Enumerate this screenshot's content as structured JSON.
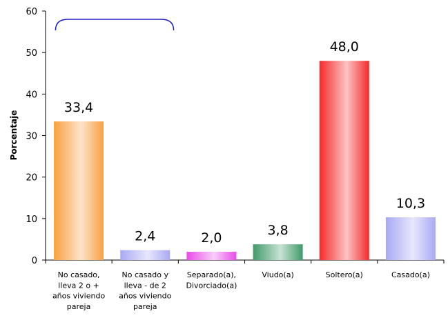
{
  "chart_data": {
    "type": "bar",
    "ylabel": "Porcentaje",
    "xlabel": "",
    "ylim": [
      0,
      60
    ],
    "yticks": [
      0,
      10,
      20,
      30,
      40,
      50,
      60
    ],
    "grid": false,
    "categories": [
      [
        "No casado,",
        "lleva 2 o +",
        "años viviendo",
        "pareja"
      ],
      [
        "No casado y",
        "lleva - de 2",
        "años viviendo",
        "pareja"
      ],
      [
        "Separado(a),",
        "Divorciado(a)"
      ],
      [
        "Viudo(a)"
      ],
      [
        "Soltero(a)"
      ],
      [
        "Casado(a)"
      ]
    ],
    "values": [
      33.4,
      2.4,
      2.0,
      3.8,
      48.0,
      10.3
    ],
    "value_labels": [
      "33,4",
      "2,4",
      "2,0",
      "3,8",
      "48,0",
      "10,3"
    ],
    "colors": [
      "#f7a040",
      "#a9a9f4",
      "#e84ce8",
      "#3f9a68",
      "#f52a2a",
      "#a9a9f4"
    ],
    "bracket_color": "#1f1fc8"
  }
}
